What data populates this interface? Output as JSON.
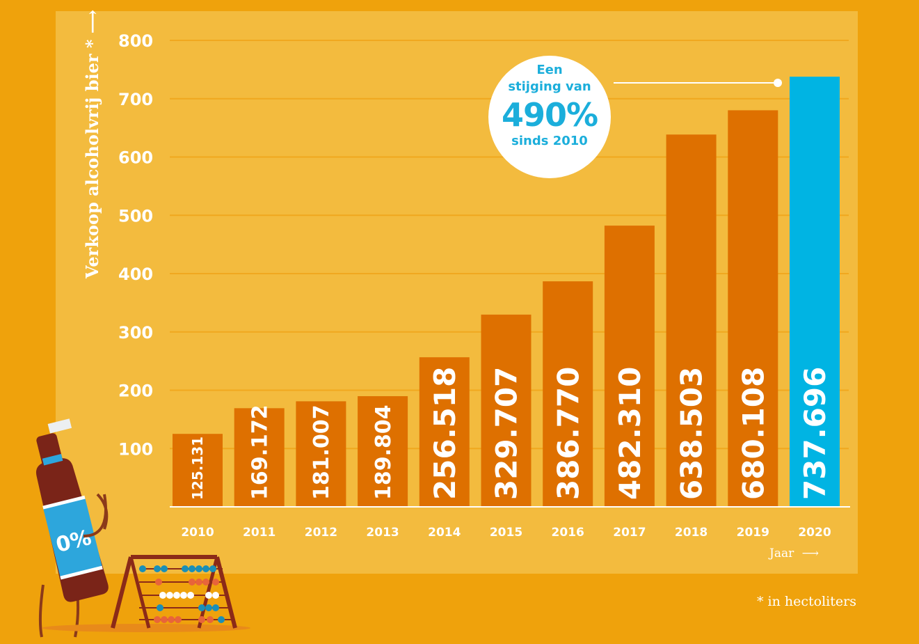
{
  "chart_data": {
    "type": "bar",
    "ylabel": "Verkoop alcoholvrij bier *",
    "xlabel": "Jaar",
    "footnote": "* in hectoliters",
    "ylim": [
      0,
      800
    ],
    "yticks": [
      100,
      200,
      300,
      400,
      500,
      600,
      700,
      800
    ],
    "grid": true,
    "categories": [
      "2010",
      "2011",
      "2012",
      "2013",
      "2014",
      "2015",
      "2016",
      "2017",
      "2018",
      "2019",
      "2020"
    ],
    "values": [
      125131,
      169172,
      181007,
      189804,
      256518,
      329707,
      386770,
      482310,
      638503,
      680108,
      737696
    ],
    "value_labels": [
      "125.131",
      "169.172",
      "181.007",
      "189.804",
      "256.518",
      "329.707",
      "386.770",
      "482.310",
      "638.503",
      "680.108",
      "737.696"
    ],
    "colors": {
      "bar": "#DE7000",
      "highlight": "#00B4E3",
      "grid": "#F0A81F",
      "background": "#F3BB3E"
    },
    "annotation": {
      "line1": "Een",
      "line2": "stijging van",
      "value": "490%",
      "line3": "sinds 2010"
    }
  },
  "illustration": {
    "bottle_label": "0%",
    "icons": [
      "beer-bottle-icon",
      "abacus-icon"
    ]
  }
}
